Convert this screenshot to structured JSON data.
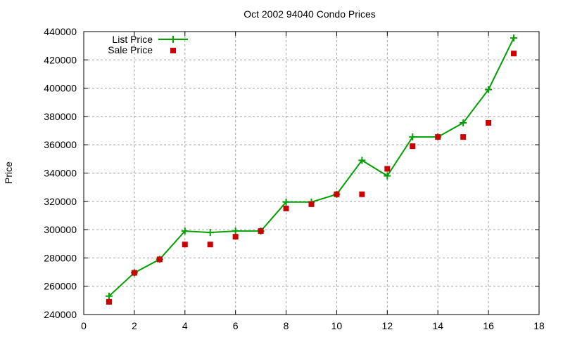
{
  "chart_data": {
    "type": "line",
    "title": "Oct 2002 94040 Condo Prices",
    "xlabel": "",
    "ylabel": "Price",
    "xlim": [
      0,
      18
    ],
    "ylim": [
      240000,
      440000
    ],
    "xticks": [
      0,
      2,
      4,
      6,
      8,
      10,
      12,
      14,
      16,
      18
    ],
    "yticks": [
      240000,
      260000,
      280000,
      300000,
      320000,
      340000,
      360000,
      380000,
      400000,
      420000,
      440000
    ],
    "grid": true,
    "legend_position": "top-left",
    "x": [
      1,
      2,
      3,
      4,
      5,
      6,
      7,
      8,
      9,
      10,
      11,
      12,
      13,
      14,
      15,
      16,
      17
    ],
    "series": [
      {
        "name": "List Price",
        "style": "linespoints",
        "marker": "plus",
        "color": "#00a000",
        "values": [
          253000,
          269500,
          279000,
          299000,
          298000,
          299000,
          299000,
          319500,
          319500,
          325000,
          349000,
          338000,
          365500,
          365500,
          375500,
          399000,
          435500
        ]
      },
      {
        "name": "Sale Price",
        "style": "points",
        "marker": "square",
        "color": "#cc0000",
        "values": [
          249000,
          269500,
          279000,
          289500,
          289500,
          295000,
          299000,
          315000,
          318000,
          325000,
          325000,
          343000,
          359000,
          365500,
          365500,
          375500,
          424500
        ]
      }
    ]
  }
}
